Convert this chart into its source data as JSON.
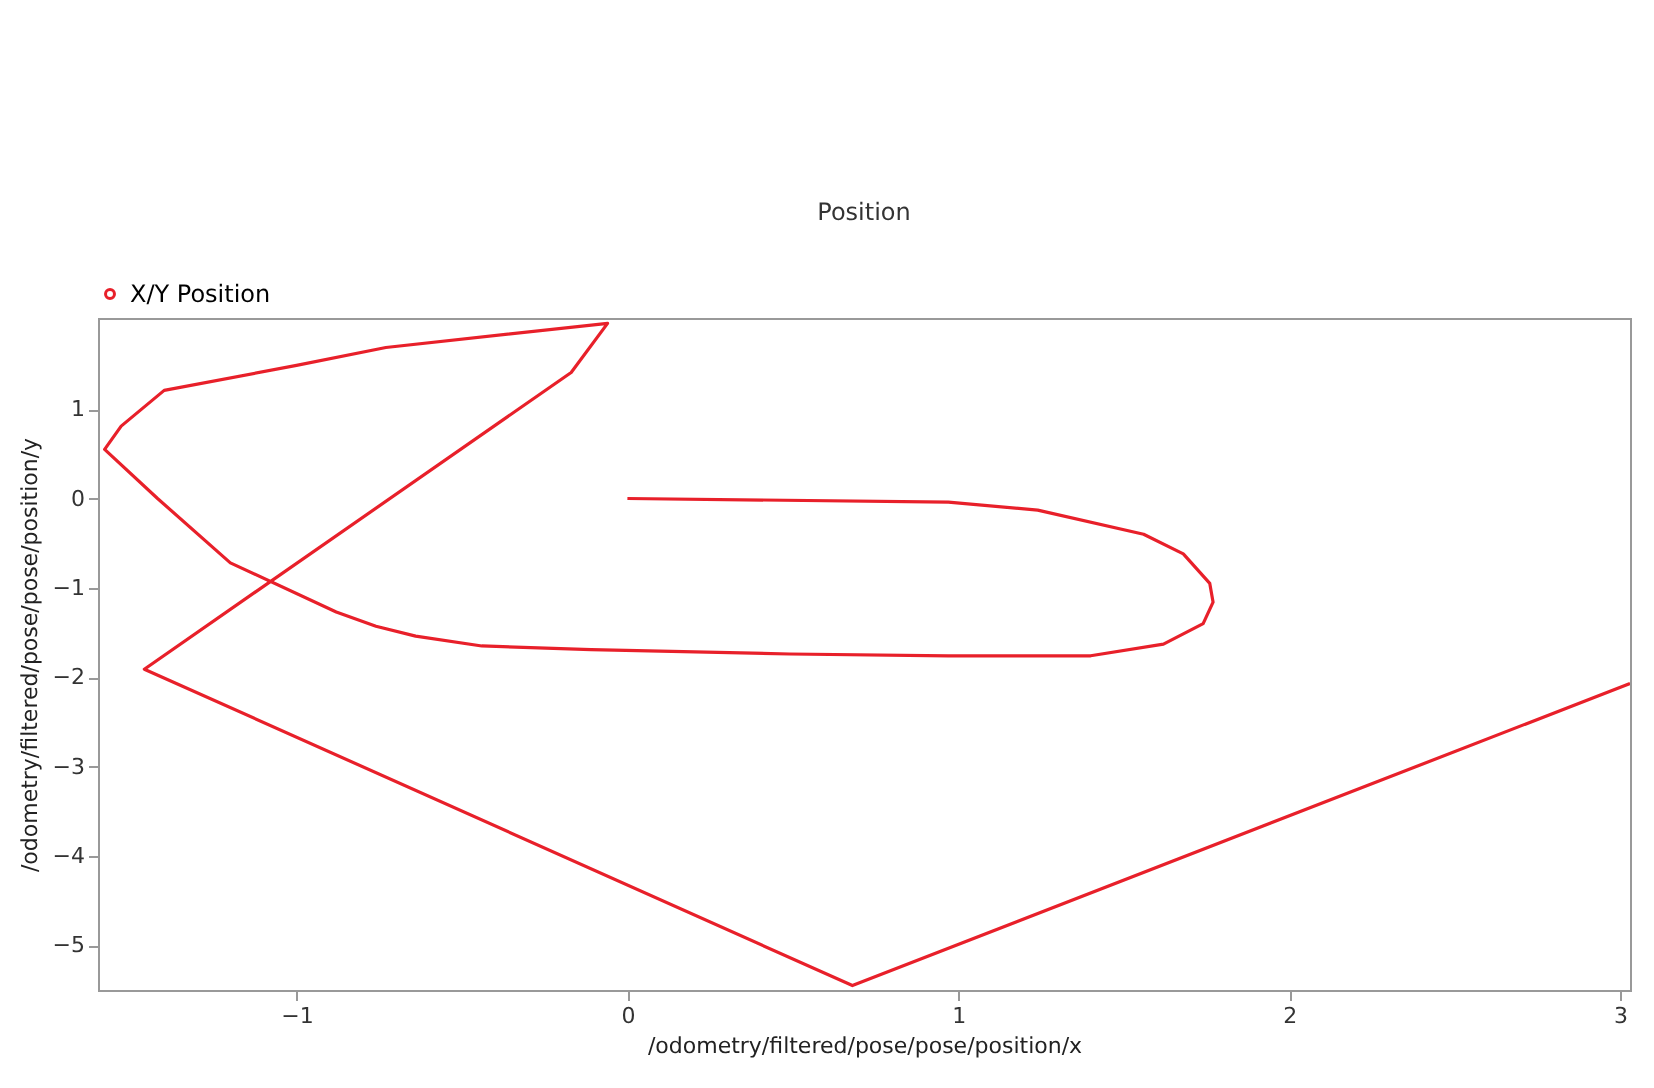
{
  "chart_data": {
    "type": "line",
    "title": "Position",
    "xlabel": "/odometry/filtered/pose/pose/position/x",
    "ylabel": "/odometry/filtered/pose/pose/position/y",
    "legend": "top",
    "xlim": [
      -1.6,
      3.03
    ],
    "ylim": [
      -5.5,
      2.02
    ],
    "xticks": [
      -1,
      0,
      1,
      2,
      3
    ],
    "yticks": [
      -5,
      -4,
      -3,
      -2,
      -1,
      0,
      1
    ],
    "grid": false,
    "marker": "none",
    "line_style": "solid",
    "series": [
      {
        "name": "X/Y Position",
        "color": "#e8202a",
        "x": [
          0,
          0.97,
          1.24,
          1.56,
          1.68,
          1.76,
          1.77,
          1.74,
          1.62,
          1.4,
          0.97,
          0.49,
          -0.11,
          -0.44,
          -0.64,
          -0.76,
          -0.88,
          -1.2,
          -1.42,
          -1.58,
          -1.53,
          -1.4,
          -1.0,
          -0.73,
          -0.06,
          -0.17,
          -1.46,
          0.68,
          3.03
        ],
        "values": [
          0,
          -0.04,
          -0.13,
          -0.4,
          -0.62,
          -0.95,
          -1.16,
          -1.4,
          -1.63,
          -1.76,
          -1.76,
          -1.74,
          -1.69,
          -1.65,
          -1.54,
          -1.43,
          -1.27,
          -0.72,
          0,
          0.55,
          0.81,
          1.21,
          1.49,
          1.69,
          1.96,
          1.41,
          -1.91,
          -5.45,
          -2.07
        ]
      }
    ]
  }
}
